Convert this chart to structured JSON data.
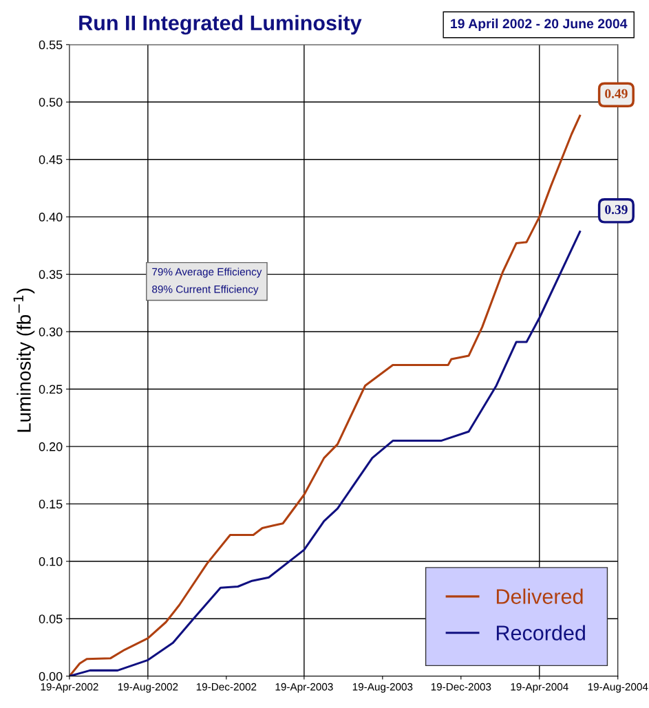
{
  "chart_data": {
    "type": "line",
    "title": "Run II Integrated Luminosity",
    "ylabel": "Luminosity (fb$^{−1}$)",
    "annotations": [
      "19 April 2002 - 20 June 2004",
      "79% Average Efficiency\n89% Current Efficiency",
      {
        "text": "0.49",
        "x": "2004-06-21",
        "y": 0.488
      },
      {
        "text": "0.39",
        "x": "2004-06-21",
        "y": 0.387
      }
    ],
    "series": [
      {
        "name": "Delivered",
        "color": "#b04010",
        "x": [
          "2002-04-19",
          "2002-05-05",
          "2002-05-16",
          "2002-06-22",
          "2002-07-14",
          "2002-08-19",
          "2002-09-16",
          "2002-10-07",
          "2002-11-19",
          "2002-12-25",
          "2003-01-30",
          "2003-02-13",
          "2003-03-01",
          "2003-03-17",
          "2003-04-19",
          "2003-05-20",
          "2003-06-10",
          "2003-07-23",
          "2003-09-04",
          "2003-11-29",
          "2003-12-04",
          "2003-12-31",
          "2004-01-21",
          "2004-02-22",
          "2004-03-14",
          "2004-03-30",
          "2004-04-19",
          "2004-05-07",
          "2004-06-08",
          "2004-06-21"
        ],
        "values": [
          0,
          0.011,
          0.015,
          0.0156,
          0.023,
          0.033,
          0.047,
          0.062,
          0.098,
          0.123,
          0.123,
          0.129,
          0.131,
          0.133,
          0.158,
          0.19,
          0.202,
          0.253,
          0.271,
          0.271,
          0.276,
          0.279,
          0.304,
          0.352,
          0.377,
          0.378,
          0.4,
          0.427,
          0.472,
          0.488
        ]
      },
      {
        "name": "Recorded",
        "color": "#101080",
        "x": [
          "2002-04-19",
          "2002-05-21",
          "2002-07-03",
          "2002-08-19",
          "2002-09-27",
          "2002-10-29",
          "2002-12-10",
          "2003-01-06",
          "2003-01-28",
          "2003-02-23",
          "2003-04-19",
          "2003-05-20",
          "2003-06-10",
          "2003-08-03",
          "2003-09-04",
          "2003-11-18",
          "2003-12-31",
          "2004-02-12",
          "2004-03-14",
          "2004-03-30",
          "2004-04-19",
          "2004-06-21"
        ],
        "values": [
          0,
          0.005,
          0.005,
          0.014,
          0.029,
          0.05,
          0.077,
          0.078,
          0.083,
          0.086,
          0.11,
          0.135,
          0.146,
          0.19,
          0.205,
          0.205,
          0.213,
          0.253,
          0.291,
          0.291,
          0.312,
          0.387
        ]
      }
    ],
    "xlim": [
      "2002-04-19",
      "2004-08-19"
    ],
    "xticks": [
      {
        "value": "2002-04-19",
        "label": "19-Apr-2002"
      },
      {
        "value": "2002-08-19",
        "label": "19-Aug-2002"
      },
      {
        "value": "2002-12-19",
        "label": "19-Dec-2002"
      },
      {
        "value": "2003-04-19",
        "label": "19-Apr-2003"
      },
      {
        "value": "2003-08-19",
        "label": "19-Aug-2003"
      },
      {
        "value": "2003-12-19",
        "label": "19-Dec-2003"
      },
      {
        "value": "2004-04-19",
        "label": "19-Apr-2004"
      },
      {
        "value": "2004-08-19",
        "label": "19-Aug-2004"
      }
    ],
    "ylim": [
      0,
      0.55
    ],
    "yticks": [
      {
        "value": 0,
        "label": "0.00"
      },
      {
        "value": 0.05,
        "label": "0.05"
      },
      {
        "value": 0.1,
        "label": "0.10"
      },
      {
        "value": 0.15,
        "label": "0.15"
      },
      {
        "value": 0.2,
        "label": "0.20"
      },
      {
        "value": 0.25,
        "label": "0.25"
      },
      {
        "value": 0.3,
        "label": "0.30"
      },
      {
        "value": 0.35,
        "label": "0.35"
      },
      {
        "value": 0.4,
        "label": "0.40"
      },
      {
        "value": 0.45,
        "label": "0.45"
      },
      {
        "value": 0.5,
        "label": "0.50"
      },
      {
        "value": 0.55,
        "label": "0.55"
      }
    ],
    "ref_lines": [
      {
        "axis": "x",
        "value": "2002-08-19",
        "color": "#000000"
      },
      {
        "axis": "x",
        "value": "2003-04-19",
        "color": "#000000"
      },
      {
        "axis": "x",
        "value": "2004-04-19",
        "color": "#000000"
      }
    ],
    "grid": "y",
    "legend": "bottom right",
    "marker": "none",
    "line_style": "solid"
  }
}
